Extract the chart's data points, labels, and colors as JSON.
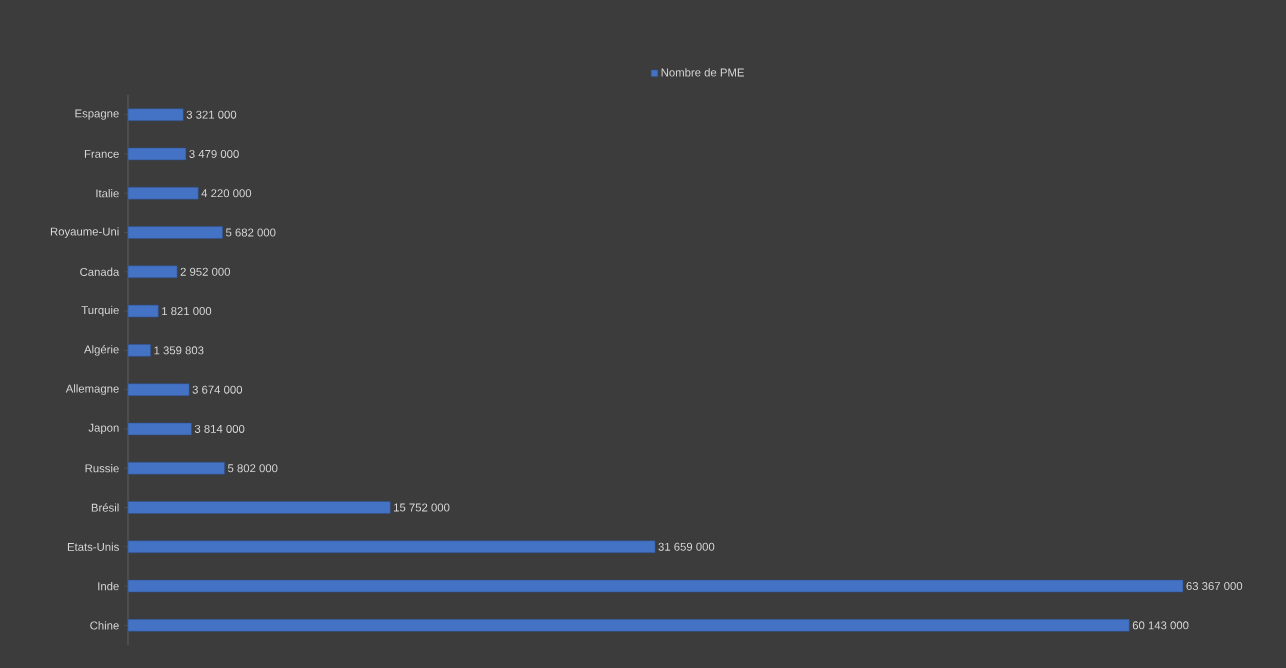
{
  "chart_data": {
    "type": "bar",
    "orientation": "horizontal",
    "legend": "top",
    "categories": [
      "Espagne",
      "France",
      "Italie",
      "Royaume-Uni",
      "Canada",
      "Turquie",
      "Algérie",
      "Allemagne",
      "Japon",
      "Russie",
      "Brésil",
      "Etats-Unis",
      "Inde",
      "Chine"
    ],
    "series": [
      {
        "name": "Nombre de PME",
        "color": "#4472c4",
        "values": [
          3321000,
          3479000,
          4220000,
          5682000,
          2952000,
          1821000,
          1359803,
          3674000,
          3814000,
          5802000,
          15752000,
          31659000,
          63367000,
          60143000
        ],
        "value_labels": [
          "3 321 000",
          "3 479 000",
          "4 220 000",
          "5 682 000",
          "2 952 000",
          "1 821 000",
          "1 359 803",
          "3 674 000",
          "3 814 000",
          "5 802 000",
          "15 752 000",
          "31 659 000",
          "63 367 000",
          "60 143 000"
        ]
      }
    ]
  }
}
